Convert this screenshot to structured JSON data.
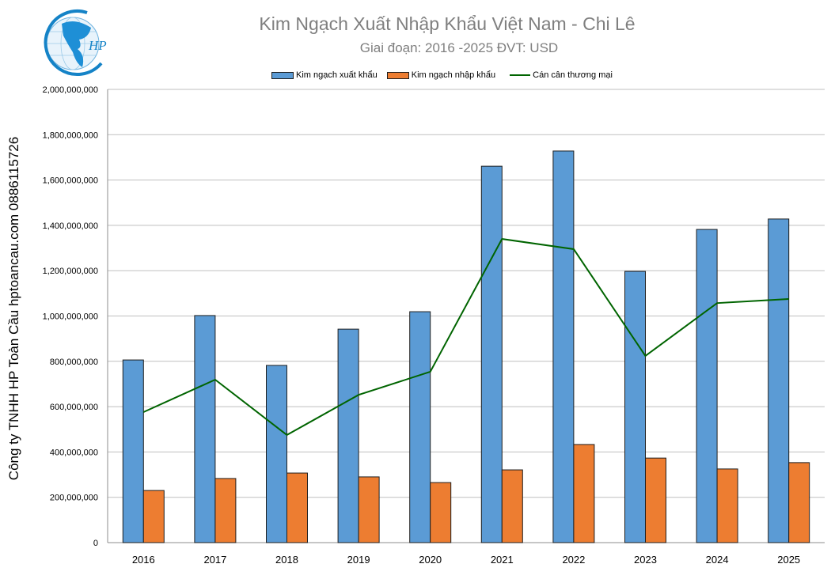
{
  "logo": {
    "text": "HP",
    "icon": "globe-logo"
  },
  "side_text": "Công ty TNHH HP Toàn Cầu hptoancau.com 0886115726",
  "chart_data": {
    "type": "bar",
    "title": "Kim Ngạch Xuất Nhập Khẩu Việt Nam - Chi Lê",
    "subtitle": "Giai đoạn: 2016 -2025  ĐVT: USD",
    "categories": [
      "2016",
      "2017",
      "2018",
      "2019",
      "2020",
      "2021",
      "2022",
      "2023",
      "2024",
      "2025"
    ],
    "series": [
      {
        "name": "Kim ngạch xuất khẩu",
        "type": "bar",
        "color": "#5b9bd5",
        "values": [
          806000000,
          1002000000,
          782000000,
          942000000,
          1019000000,
          1661000000,
          1728000000,
          1197000000,
          1382000000,
          1428000000
        ]
      },
      {
        "name": "Kim ngạch nhập khẩu",
        "type": "bar",
        "color": "#ed7d31",
        "values": [
          230000000,
          283000000,
          307000000,
          290000000,
          265000000,
          321000000,
          433000000,
          373000000,
          325000000,
          353000000
        ]
      },
      {
        "name": "Cán cân thương mại",
        "type": "line",
        "color": "#006400",
        "values": [
          576000000,
          719000000,
          475000000,
          652000000,
          754000000,
          1340000000,
          1295000000,
          824000000,
          1057000000,
          1075000000
        ]
      }
    ],
    "ylim": [
      0,
      2000000000
    ],
    "yticks": [
      "0",
      "200,000,000",
      "400,000,000",
      "600,000,000",
      "800,000,000",
      "1,000,000,000",
      "1,200,000,000",
      "1,400,000,000",
      "1,600,000,000",
      "1,800,000,000",
      "2,000,000,000"
    ],
    "grid": true,
    "legend": "top"
  }
}
